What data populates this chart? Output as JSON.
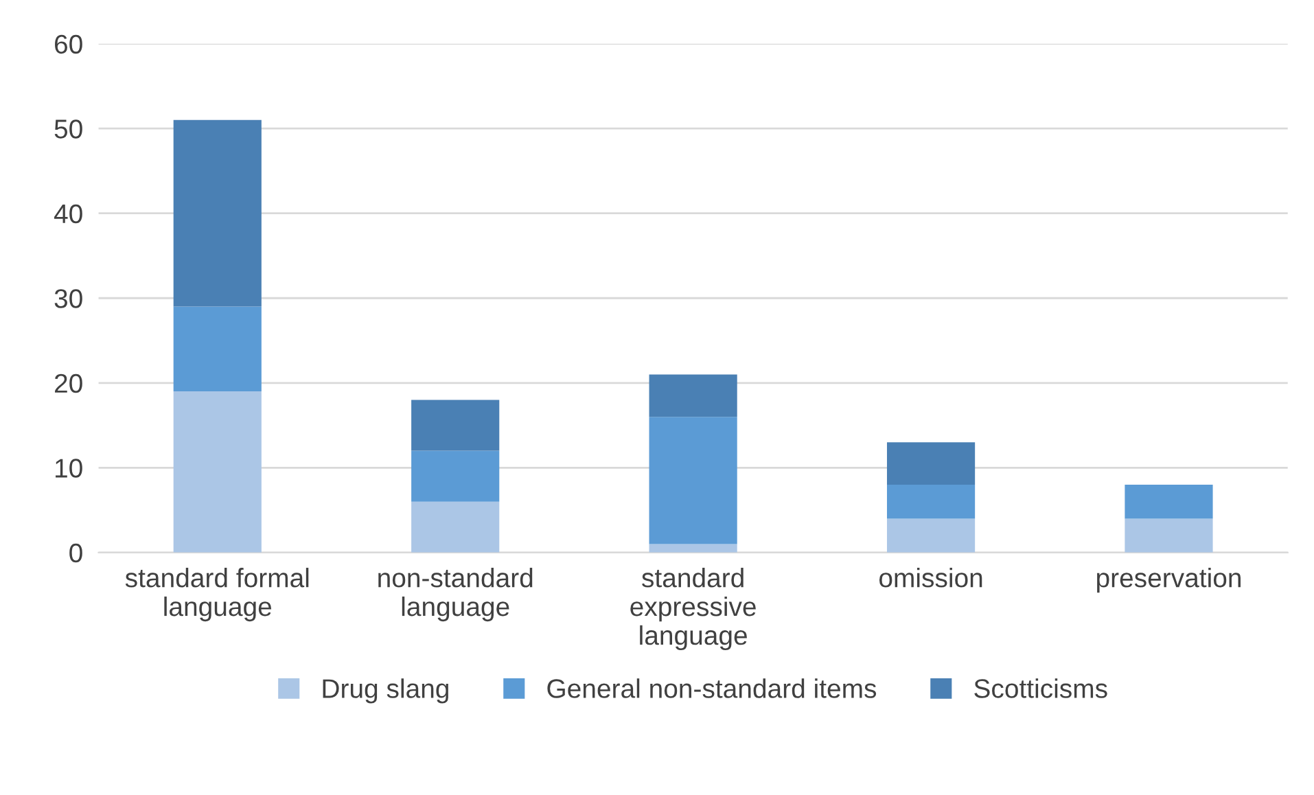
{
  "chart_data": {
    "type": "bar",
    "stacked": true,
    "categories": [
      "standard formal language",
      "non-standard language",
      "standard expressive language",
      "omission",
      "preservation"
    ],
    "series": [
      {
        "name": "Drug slang",
        "color": "#abc6e6",
        "values": [
          19,
          6,
          1,
          4,
          4
        ]
      },
      {
        "name": "General non-standard items",
        "color": "#5b9bd5",
        "values": [
          10,
          6,
          15,
          4,
          4
        ]
      },
      {
        "name": "Scotticisms",
        "color": "#4a80b4",
        "values": [
          22,
          6,
          5,
          5,
          0
        ]
      }
    ],
    "ylim": [
      0,
      60
    ],
    "yticks": [
      0,
      10,
      20,
      30,
      40,
      50,
      60
    ],
    "grid": "y",
    "legend": "bottom"
  }
}
